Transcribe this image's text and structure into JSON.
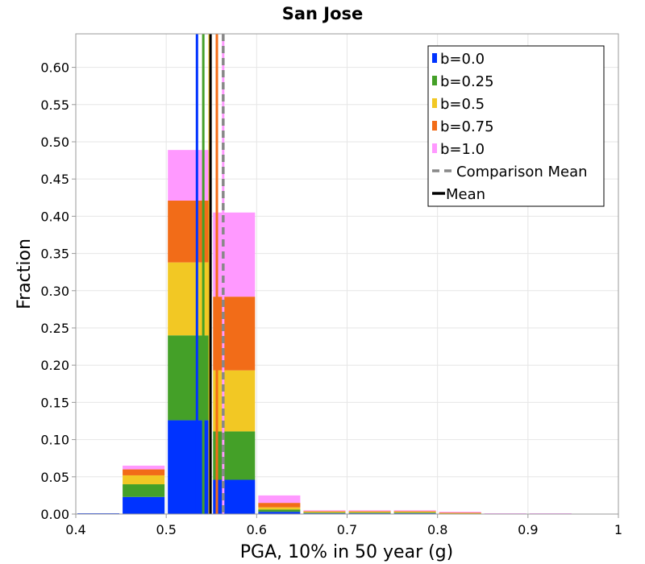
{
  "chart_data": {
    "type": "bar",
    "stacked": true,
    "title": "San Jose",
    "xlabel": "PGA, 10% in 50 year (g)",
    "ylabel": "Fraction",
    "xlim": [
      0.4,
      1.0
    ],
    "ylim": [
      0.0,
      0.645
    ],
    "grid": true,
    "legend_position": "top-right",
    "xticks": [
      "0.4",
      "0.5",
      "0.6",
      "0.7",
      "0.8",
      "0.9",
      "1"
    ],
    "yticks": [
      "0.00",
      "0.05",
      "0.10",
      "0.15",
      "0.20",
      "0.25",
      "0.30",
      "0.35",
      "0.40",
      "0.45",
      "0.50",
      "0.55",
      "0.60"
    ],
    "bins": [
      {
        "x0": 0.4,
        "x1": 0.45
      },
      {
        "x0": 0.45,
        "x1": 0.5
      },
      {
        "x0": 0.5,
        "x1": 0.55
      },
      {
        "x0": 0.55,
        "x1": 0.6
      },
      {
        "x0": 0.6,
        "x1": 0.65
      },
      {
        "x0": 0.65,
        "x1": 0.7
      },
      {
        "x0": 0.7,
        "x1": 0.75
      },
      {
        "x0": 0.75,
        "x1": 0.8
      },
      {
        "x0": 0.8,
        "x1": 0.85
      },
      {
        "x0": 0.85,
        "x1": 0.9
      },
      {
        "x0": 0.9,
        "x1": 0.95
      }
    ],
    "series": [
      {
        "name": "b=0.0",
        "color": "#0033ff",
        "values": [
          0.001,
          0.023,
          0.126,
          0.046,
          0.003,
          0.001,
          0.001,
          0.001,
          0.0005,
          0.0,
          0.0
        ]
      },
      {
        "name": "b=0.25",
        "color": "#44a028",
        "values": [
          0.0,
          0.017,
          0.114,
          0.065,
          0.003,
          0.001,
          0.001,
          0.001,
          0.0005,
          0.0,
          0.0
        ]
      },
      {
        "name": "b=0.5",
        "color": "#f2c824",
        "values": [
          0.0,
          0.012,
          0.098,
          0.082,
          0.003,
          0.001,
          0.001,
          0.001,
          0.0005,
          0.0,
          0.0
        ]
      },
      {
        "name": "b=0.75",
        "color": "#f26c18",
        "values": [
          0.0,
          0.008,
          0.083,
          0.099,
          0.006,
          0.001,
          0.001,
          0.001,
          0.0005,
          0.0,
          0.0
        ]
      },
      {
        "name": "b=1.0",
        "color": "#ff99ff",
        "values": [
          0.0,
          0.005,
          0.068,
          0.113,
          0.01,
          0.001,
          0.001,
          0.001,
          0.001,
          0.001,
          0.001
        ]
      }
    ],
    "mean_lines": [
      {
        "series": "b=0.0",
        "x": 0.534,
        "color": "#0033ff"
      },
      {
        "series": "b=0.25",
        "x": 0.541,
        "color": "#44a028"
      },
      {
        "series": "b=0.5",
        "x": 0.548,
        "color": "#f2c824"
      },
      {
        "series": "b=0.75",
        "x": 0.556,
        "color": "#f26c18"
      },
      {
        "series": "b=1.0",
        "x": 0.563,
        "color": "#ff99ff"
      }
    ],
    "mean": {
      "label": "Mean",
      "x": 0.549,
      "color": "#000000"
    },
    "comparison_mean": {
      "label": "Comparison Mean",
      "x": 0.563,
      "color": "#888888"
    }
  }
}
